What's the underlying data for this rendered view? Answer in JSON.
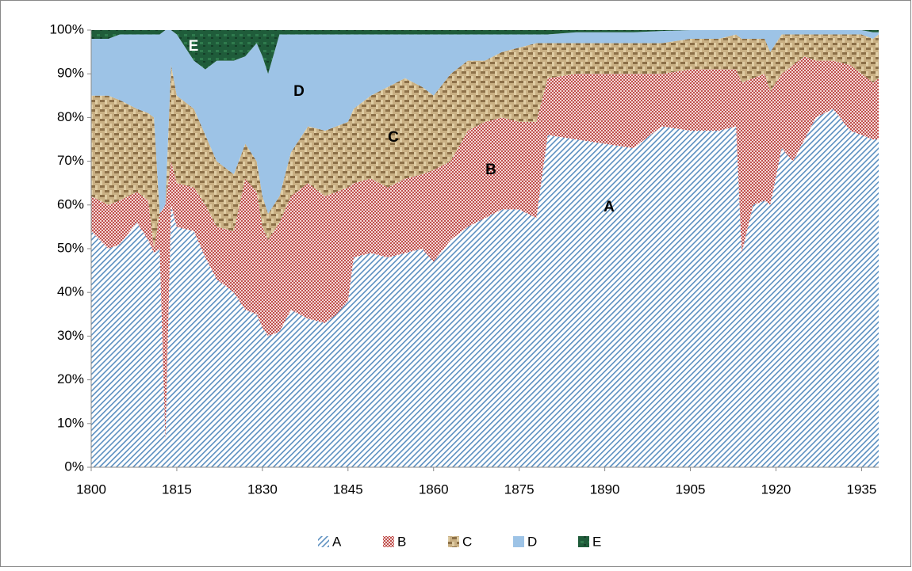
{
  "chart_data": {
    "type": "stacked_area",
    "x": [
      1800,
      1803,
      1805,
      1808,
      1810,
      1811,
      1812,
      1813,
      1814,
      1815,
      1818,
      1820,
      1822,
      1825,
      1827,
      1829,
      1830,
      1831,
      1833,
      1835,
      1838,
      1841,
      1843,
      1845,
      1846,
      1849,
      1852,
      1855,
      1858,
      1860,
      1863,
      1866,
      1869,
      1872,
      1875,
      1878,
      1880,
      1885,
      1890,
      1895,
      1900,
      1905,
      1910,
      1913,
      1914,
      1916,
      1918,
      1919,
      1921,
      1923,
      1925,
      1927,
      1930,
      1933,
      1935,
      1937,
      1938
    ],
    "series": [
      {
        "name": "A",
        "color": "#4f81bd",
        "values": [
          54,
          50,
          51,
          56,
          52,
          49,
          50,
          6,
          60,
          55,
          54,
          48,
          43,
          40,
          36,
          35,
          32,
          30,
          31,
          36,
          34,
          33,
          35,
          38,
          48,
          49,
          48,
          49,
          50,
          47,
          52,
          55,
          57,
          59,
          59,
          57,
          76,
          75,
          74,
          73,
          78,
          77,
          77,
          78,
          49,
          60,
          61,
          60,
          73,
          70,
          75,
          80,
          82,
          77,
          76,
          75,
          75
        ]
      },
      {
        "name": "B",
        "color": "#c0504d",
        "values": [
          8,
          10,
          10,
          7,
          9,
          1,
          8,
          54,
          10,
          10,
          10,
          12,
          12,
          14,
          30,
          28,
          23,
          22,
          25,
          26,
          31,
          29,
          28,
          26,
          17,
          17,
          16,
          17,
          17,
          21,
          18,
          22,
          22,
          21,
          20,
          22,
          13,
          15,
          16,
          17,
          12,
          14,
          14,
          13,
          39,
          29,
          29,
          26,
          17,
          22,
          19,
          13,
          11,
          15,
          14,
          13,
          14
        ]
      },
      {
        "name": "C",
        "color": "#b8a070",
        "values": [
          23,
          25,
          23,
          19,
          20,
          30,
          0,
          0,
          22,
          20,
          18,
          16,
          15,
          13,
          8,
          7,
          7,
          6,
          6,
          10,
          13,
          15,
          15,
          15,
          17,
          19,
          23,
          23,
          20,
          17,
          20,
          16,
          14,
          15,
          17,
          18,
          8,
          7,
          7,
          7,
          7,
          7,
          7,
          8,
          10,
          9,
          8,
          9,
          9,
          7,
          5,
          6,
          6,
          7,
          9,
          10,
          10
        ]
      },
      {
        "name": "D",
        "color": "#9dc3e6",
        "values": [
          13,
          13,
          15,
          17,
          18,
          19,
          41,
          40,
          8,
          14,
          11,
          15,
          23,
          26,
          20,
          27,
          32,
          32,
          37,
          27,
          21,
          22,
          21,
          20,
          17,
          14,
          12,
          10,
          12,
          14,
          9,
          6,
          6,
          4,
          3,
          2,
          2,
          2.5,
          2.5,
          2.5,
          2.8,
          2,
          2,
          1,
          2,
          2,
          2,
          5,
          1,
          1,
          1,
          1,
          1,
          1,
          1,
          1.5,
          0.5
        ]
      },
      {
        "name": "E",
        "color": "#1f5c3a",
        "values": [
          2,
          2,
          1,
          1,
          1,
          1,
          1,
          0,
          0,
          1,
          7,
          9,
          7,
          7,
          6,
          3,
          6,
          10,
          1,
          1,
          1,
          1,
          1,
          1,
          1,
          1,
          1,
          1,
          1,
          1,
          1,
          1,
          1,
          1,
          1,
          1,
          1,
          0.5,
          0.5,
          0.5,
          0.2,
          0,
          0,
          0,
          0,
          0,
          0,
          0,
          0,
          0,
          0,
          0,
          0,
          0,
          0,
          0.5,
          0.5
        ]
      }
    ],
    "xlim": [
      1800,
      1938
    ],
    "xticks": [
      1800,
      1815,
      1830,
      1845,
      1860,
      1875,
      1890,
      1905,
      1920,
      1935
    ],
    "ylim": [
      0,
      100
    ],
    "yticks": [
      {
        "value": 0,
        "label": "0%"
      },
      {
        "value": 10,
        "label": "10%"
      },
      {
        "value": 20,
        "label": "20%"
      },
      {
        "value": 30,
        "label": "30%"
      },
      {
        "value": 40,
        "label": "40%"
      },
      {
        "value": 50,
        "label": "50%"
      },
      {
        "value": 60,
        "label": "60%"
      },
      {
        "value": 70,
        "label": "70%"
      },
      {
        "value": 80,
        "label": "80%"
      },
      {
        "value": 90,
        "label": "90%"
      },
      {
        "value": 100,
        "label": "100%"
      }
    ],
    "grid": false,
    "legend": "bottom"
  }
}
